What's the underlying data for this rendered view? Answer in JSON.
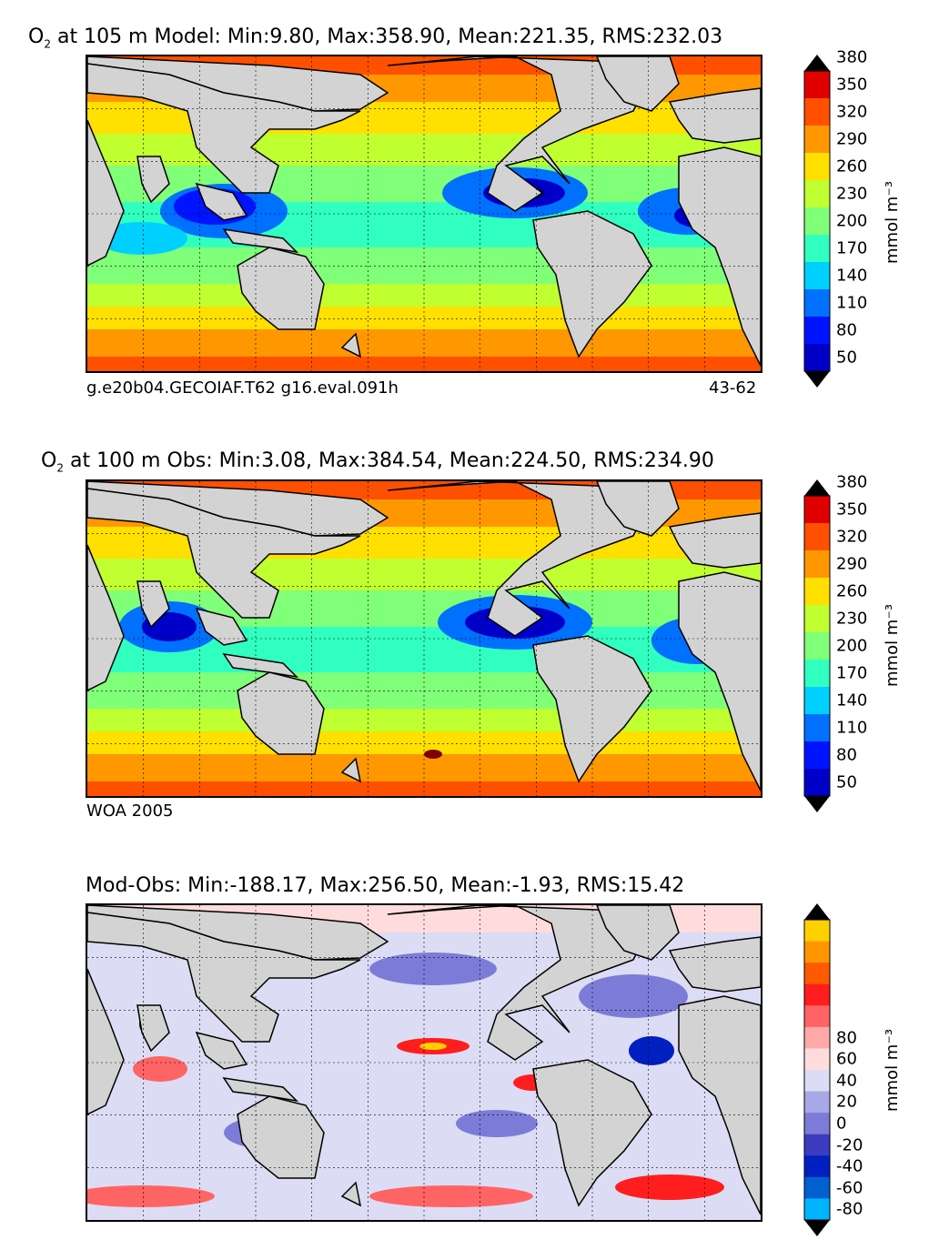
{
  "panels": [
    {
      "title_pre": "O",
      "title_sub": "2",
      "title_post": "at 105 m Model: Min:9.80, Max:358.90, Mean:221.35, RMS:232.03",
      "footer_left": "g.e20b04.GECOIAF.T62 g16.eval.091h",
      "footer_right": "43-62",
      "colorbar_ticks": [
        "380",
        "350",
        "320",
        "290",
        "260",
        "230",
        "200",
        "170",
        "140",
        "110",
        "80",
        "50"
      ],
      "unit": "mmol m⁻³"
    },
    {
      "title_pre": "O",
      "title_sub": "2",
      "title_post": "at 100 m Obs: Min:3.08, Max:384.54, Mean:224.50, RMS:234.90",
      "footer_left": "WOA 2005",
      "footer_right": "",
      "colorbar_ticks": [
        "380",
        "350",
        "320",
        "290",
        "260",
        "230",
        "200",
        "170",
        "140",
        "110",
        "80",
        "50"
      ],
      "unit": "mmol m⁻³"
    },
    {
      "title_pre": "",
      "title_sub": "",
      "title_post": "Mod-Obs: Min:-188.17, Max:256.50, Mean:-1.93, RMS:15.42",
      "footer_left": "",
      "footer_right": "",
      "colorbar_ticks": [
        "80",
        "60",
        "40",
        "20",
        "0",
        "-20",
        "-40",
        "-60",
        "-80"
      ],
      "unit": "mmol m⁻³"
    }
  ],
  "chart_data": [
    {
      "type": "heatmap",
      "title": "O2 at 105 m Model: Min:9.80, Max:358.90, Mean:221.35, RMS:232.03",
      "variable": "O2",
      "depth_m": 105,
      "stats": {
        "min": 9.8,
        "max": 358.9,
        "mean": 221.35,
        "rms": 232.03
      },
      "colorbar": {
        "levels": [
          50,
          80,
          110,
          140,
          170,
          200,
          230,
          260,
          290,
          320,
          350,
          380
        ],
        "extend": "both",
        "unit": "mmol m^-3"
      },
      "colors": [
        "#000080",
        "#0000c8",
        "#0014ff",
        "#0070ff",
        "#00d0ff",
        "#30ffc0",
        "#80ff78",
        "#c0ff30",
        "#ffe000",
        "#ff9800",
        "#ff5000",
        "#e00000",
        "#800000"
      ],
      "land_color": "#d3d3d3"
    },
    {
      "type": "heatmap",
      "title": "O2 at 100 m Obs: Min:3.08, Max:384.54, Mean:224.50, RMS:234.90",
      "variable": "O2",
      "depth_m": 100,
      "stats": {
        "min": 3.08,
        "max": 384.54,
        "mean": 224.5,
        "rms": 234.9
      },
      "colorbar": {
        "levels": [
          50,
          80,
          110,
          140,
          170,
          200,
          230,
          260,
          290,
          320,
          350,
          380
        ],
        "extend": "both",
        "unit": "mmol m^-3"
      },
      "colors": [
        "#000080",
        "#0000c8",
        "#0014ff",
        "#0070ff",
        "#00d0ff",
        "#30ffc0",
        "#80ff78",
        "#c0ff30",
        "#ffe000",
        "#ff9800",
        "#ff5000",
        "#e00000",
        "#800000"
      ],
      "land_color": "#d3d3d3"
    },
    {
      "type": "heatmap",
      "title": "Mod-Obs: Min:-188.17, Max:256.50, Mean:-1.93, RMS:15.42",
      "stats": {
        "min": -188.17,
        "max": 256.5,
        "mean": -1.93,
        "rms": 15.42
      },
      "colorbar": {
        "levels": [
          -80,
          -60,
          -40,
          -20,
          0,
          20,
          40,
          60,
          80
        ],
        "extend": "both",
        "unit": "mmol m^-3"
      },
      "colors": [
        "#00ffff",
        "#00b4ff",
        "#0060d0",
        "#0020c0",
        "#3c3cc0",
        "#7c7cd8",
        "#a8a8e8",
        "#dcdcf4",
        "#ffdcdc",
        "#ffa8a8",
        "#ff6464",
        "#ff1e1e",
        "#ff5a00",
        "#ff9600",
        "#ffd000",
        "#ffff00"
      ],
      "land_color": "#d3d3d3"
    }
  ]
}
